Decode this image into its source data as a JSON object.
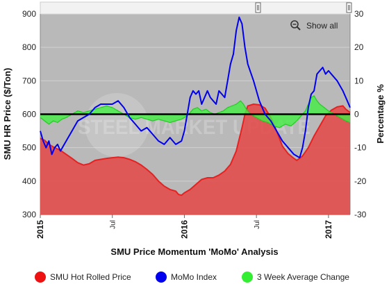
{
  "chart_data": {
    "type": "line",
    "title": "SMU Price Momentum 'MoMo' Analysis",
    "ylabel_left": "SMU HR Price ($/Ton)",
    "ylabel_right": "Percentage %",
    "ylim_left": [
      300,
      900
    ],
    "ylim_right": [
      -30,
      30
    ],
    "yticks_left": [
      "300",
      "400",
      "500",
      "600",
      "700",
      "800",
      "900"
    ],
    "yticks_right": [
      "-30",
      "-20",
      "-10",
      "0",
      "10",
      "20",
      "30"
    ],
    "xlim": [
      2015.0,
      2017.15
    ],
    "xticks": [
      {
        "x": 2015.0,
        "label": "2015",
        "bold": true
      },
      {
        "x": 2015.5,
        "label": "Jul",
        "bold": false
      },
      {
        "x": 2016.0,
        "label": "2016",
        "bold": true
      },
      {
        "x": 2016.5,
        "label": "Jul",
        "bold": false
      },
      {
        "x": 2017.0,
        "label": "2017",
        "bold": true
      }
    ],
    "grid": true,
    "legend_position": "bottom",
    "series": [
      {
        "name": "SMU Hot Rolled Price",
        "type": "area",
        "axis": "left",
        "color": "#e52222",
        "points": [
          [
            2015.0,
            528
          ],
          [
            2015.03,
            522
          ],
          [
            2015.06,
            510
          ],
          [
            2015.1,
            500
          ],
          [
            2015.14,
            492
          ],
          [
            2015.18,
            480
          ],
          [
            2015.22,
            468
          ],
          [
            2015.26,
            455
          ],
          [
            2015.3,
            448
          ],
          [
            2015.34,
            452
          ],
          [
            2015.38,
            462
          ],
          [
            2015.42,
            465
          ],
          [
            2015.46,
            468
          ],
          [
            2015.5,
            470
          ],
          [
            2015.54,
            472
          ],
          [
            2015.58,
            470
          ],
          [
            2015.62,
            465
          ],
          [
            2015.66,
            458
          ],
          [
            2015.7,
            448
          ],
          [
            2015.74,
            435
          ],
          [
            2015.78,
            420
          ],
          [
            2015.82,
            400
          ],
          [
            2015.86,
            385
          ],
          [
            2015.9,
            375
          ],
          [
            2015.94,
            370
          ],
          [
            2015.96,
            360
          ],
          [
            2015.98,
            358
          ],
          [
            2016.0,
            365
          ],
          [
            2016.04,
            375
          ],
          [
            2016.08,
            390
          ],
          [
            2016.12,
            405
          ],
          [
            2016.16,
            410
          ],
          [
            2016.2,
            410
          ],
          [
            2016.24,
            418
          ],
          [
            2016.28,
            430
          ],
          [
            2016.32,
            450
          ],
          [
            2016.36,
            490
          ],
          [
            2016.4,
            560
          ],
          [
            2016.42,
            600
          ],
          [
            2016.44,
            625
          ],
          [
            2016.48,
            630
          ],
          [
            2016.52,
            628
          ],
          [
            2016.56,
            618
          ],
          [
            2016.6,
            590
          ],
          [
            2016.64,
            550
          ],
          [
            2016.68,
            505
          ],
          [
            2016.72,
            482
          ],
          [
            2016.76,
            468
          ],
          [
            2016.78,
            462
          ],
          [
            2016.82,
            475
          ],
          [
            2016.86,
            500
          ],
          [
            2016.9,
            535
          ],
          [
            2016.94,
            565
          ],
          [
            2016.98,
            595
          ],
          [
            2017.02,
            612
          ],
          [
            2017.06,
            622
          ],
          [
            2017.1,
            625
          ],
          [
            2017.12,
            615
          ],
          [
            2017.15,
            605
          ]
        ]
      },
      {
        "name": "MoMo Index",
        "type": "line",
        "axis": "right",
        "color": "#0000ee",
        "points": [
          [
            2015.0,
            -5
          ],
          [
            2015.02,
            -8
          ],
          [
            2015.04,
            -10
          ],
          [
            2015.06,
            -8
          ],
          [
            2015.08,
            -12
          ],
          [
            2015.1,
            -10
          ],
          [
            2015.12,
            -9
          ],
          [
            2015.14,
            -11
          ],
          [
            2015.18,
            -8
          ],
          [
            2015.22,
            -5
          ],
          [
            2015.26,
            -2
          ],
          [
            2015.3,
            -1
          ],
          [
            2015.34,
            0
          ],
          [
            2015.38,
            2
          ],
          [
            2015.42,
            3
          ],
          [
            2015.46,
            3
          ],
          [
            2015.5,
            3
          ],
          [
            2015.54,
            4
          ],
          [
            2015.58,
            2
          ],
          [
            2015.62,
            -1
          ],
          [
            2015.66,
            -3
          ],
          [
            2015.7,
            -5
          ],
          [
            2015.74,
            -4
          ],
          [
            2015.78,
            -6
          ],
          [
            2015.82,
            -8
          ],
          [
            2015.86,
            -9
          ],
          [
            2015.9,
            -7
          ],
          [
            2015.94,
            -9
          ],
          [
            2015.98,
            -8
          ],
          [
            2016.0,
            -5
          ],
          [
            2016.02,
            0
          ],
          [
            2016.04,
            5
          ],
          [
            2016.06,
            7
          ],
          [
            2016.08,
            6
          ],
          [
            2016.1,
            7
          ],
          [
            2016.12,
            3
          ],
          [
            2016.14,
            5
          ],
          [
            2016.16,
            7
          ],
          [
            2016.18,
            5
          ],
          [
            2016.2,
            4
          ],
          [
            2016.22,
            3
          ],
          [
            2016.24,
            7
          ],
          [
            2016.26,
            6
          ],
          [
            2016.28,
            5
          ],
          [
            2016.3,
            10
          ],
          [
            2016.32,
            15
          ],
          [
            2016.34,
            18
          ],
          [
            2016.36,
            25
          ],
          [
            2016.38,
            29
          ],
          [
            2016.4,
            27
          ],
          [
            2016.42,
            20
          ],
          [
            2016.44,
            15
          ],
          [
            2016.48,
            10
          ],
          [
            2016.52,
            4
          ],
          [
            2016.56,
            0
          ],
          [
            2016.6,
            -2
          ],
          [
            2016.64,
            -5
          ],
          [
            2016.68,
            -8
          ],
          [
            2016.72,
            -10
          ],
          [
            2016.76,
            -12
          ],
          [
            2016.8,
            -13
          ],
          [
            2016.82,
            -10
          ],
          [
            2016.84,
            -5
          ],
          [
            2016.86,
            2
          ],
          [
            2016.88,
            6
          ],
          [
            2016.9,
            7
          ],
          [
            2016.92,
            12
          ],
          [
            2016.94,
            13
          ],
          [
            2016.96,
            14
          ],
          [
            2016.98,
            12
          ],
          [
            2017.0,
            13
          ],
          [
            2017.02,
            12
          ],
          [
            2017.06,
            10
          ],
          [
            2017.1,
            7
          ],
          [
            2017.13,
            4
          ],
          [
            2017.15,
            2
          ]
        ]
      },
      {
        "name": "3 Week Average Change",
        "type": "area",
        "axis": "right",
        "color": "#33ee33",
        "points": [
          [
            2015.0,
            -1
          ],
          [
            2015.03,
            -2
          ],
          [
            2015.06,
            -3
          ],
          [
            2015.09,
            -2
          ],
          [
            2015.12,
            -2.5
          ],
          [
            2015.15,
            -1.5
          ],
          [
            2015.18,
            -1
          ],
          [
            2015.22,
            0
          ],
          [
            2015.26,
            1
          ],
          [
            2015.3,
            0.5
          ],
          [
            2015.34,
            1
          ],
          [
            2015.38,
            1.5
          ],
          [
            2015.42,
            2
          ],
          [
            2015.46,
            2.5
          ],
          [
            2015.5,
            2
          ],
          [
            2015.54,
            1
          ],
          [
            2015.58,
            0
          ],
          [
            2015.62,
            -1
          ],
          [
            2015.66,
            -1.5
          ],
          [
            2015.7,
            -1
          ],
          [
            2015.74,
            -1.5
          ],
          [
            2015.78,
            -2
          ],
          [
            2015.82,
            -1.5
          ],
          [
            2015.86,
            -2
          ],
          [
            2015.9,
            -2.5
          ],
          [
            2015.94,
            -2
          ],
          [
            2015.98,
            -1.5
          ],
          [
            2016.0,
            -1
          ],
          [
            2016.03,
            0
          ],
          [
            2016.06,
            1.5
          ],
          [
            2016.09,
            2
          ],
          [
            2016.12,
            1
          ],
          [
            2016.15,
            1.5
          ],
          [
            2016.18,
            0.5
          ],
          [
            2016.21,
            0
          ],
          [
            2016.24,
            0.5
          ],
          [
            2016.27,
            1
          ],
          [
            2016.3,
            2
          ],
          [
            2016.33,
            2.5
          ],
          [
            2016.36,
            3
          ],
          [
            2016.39,
            4
          ],
          [
            2016.41,
            3
          ],
          [
            2016.43,
            1.5
          ],
          [
            2016.46,
            0
          ],
          [
            2016.5,
            -1
          ],
          [
            2016.54,
            -2
          ],
          [
            2016.58,
            -2.5
          ],
          [
            2016.62,
            -3.5
          ],
          [
            2016.66,
            -4
          ],
          [
            2016.7,
            -3
          ],
          [
            2016.74,
            -3.5
          ],
          [
            2016.78,
            -2
          ],
          [
            2016.8,
            -1
          ],
          [
            2016.82,
            0
          ],
          [
            2016.84,
            1
          ],
          [
            2016.86,
            3
          ],
          [
            2016.88,
            5
          ],
          [
            2016.9,
            5.5
          ],
          [
            2016.92,
            4
          ],
          [
            2016.94,
            3
          ],
          [
            2016.97,
            2
          ],
          [
            2017.0,
            1
          ],
          [
            2017.04,
            0
          ],
          [
            2017.08,
            -1
          ],
          [
            2017.12,
            -2
          ],
          [
            2017.15,
            -2.5
          ]
        ]
      }
    ]
  },
  "zoom": {
    "show_all_label": "Show all"
  },
  "watermark": {
    "text": "STEEL MARKET UPDATE"
  },
  "colors": {
    "plot_background": "#b9b9b9",
    "zero_line": "#000000",
    "hr_area_fill": "#e24a4a",
    "hr_line": "#e52222",
    "momo_line": "#0000ee",
    "avg_fill": "#44ee44"
  }
}
